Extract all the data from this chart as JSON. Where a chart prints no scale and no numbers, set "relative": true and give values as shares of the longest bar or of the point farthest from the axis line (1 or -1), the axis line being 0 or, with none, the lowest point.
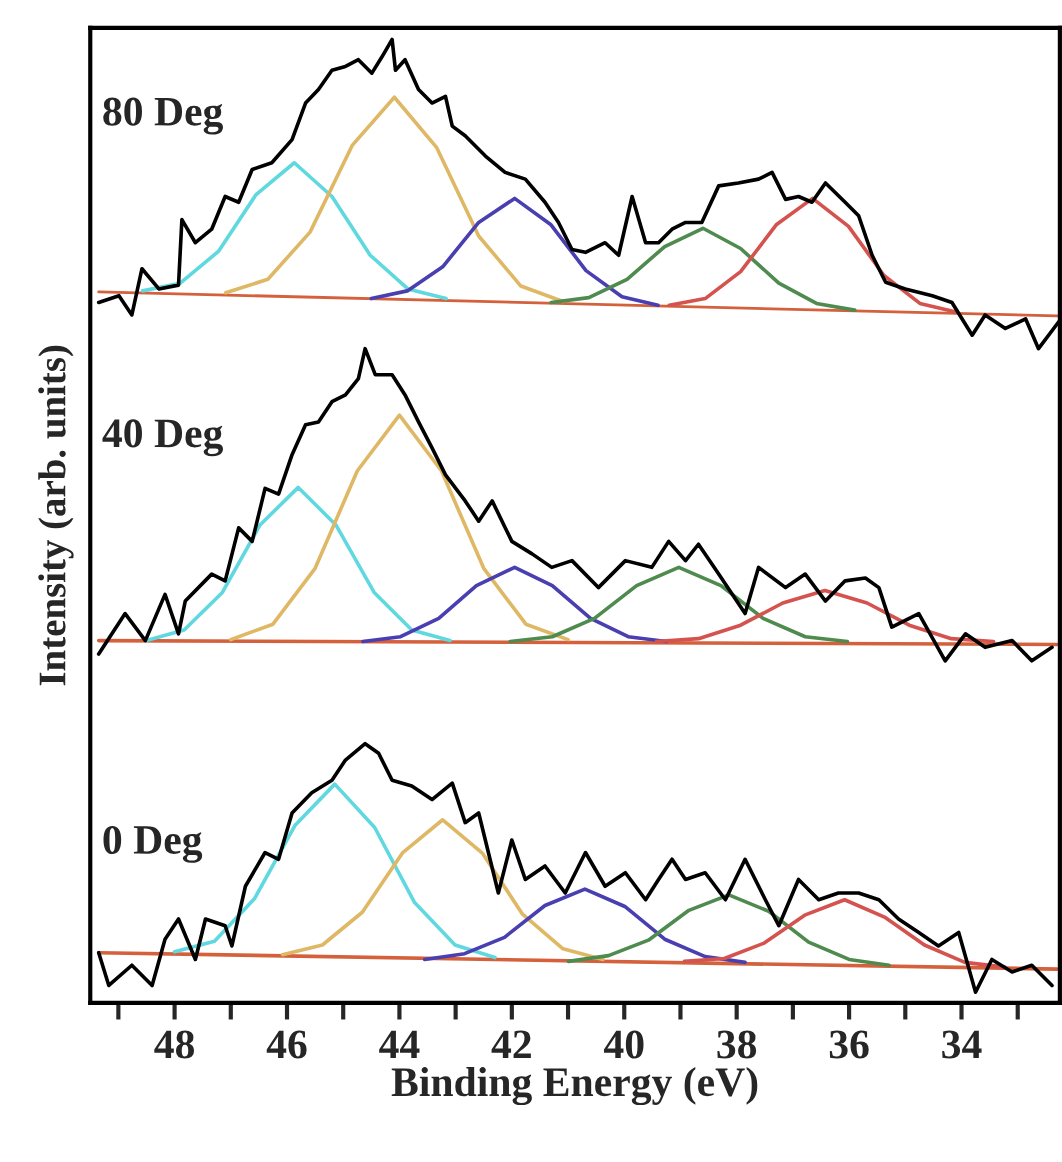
{
  "chart_data": {
    "type": "line",
    "relative": true,
    "xlabel": "Binding Energy (eV)",
    "ylabel": "Intensity (arb. units)",
    "xlim": [
      49.5,
      32.25
    ],
    "xticks": [
      {
        "value": 49,
        "label": null
      },
      48,
      {
        "value": 47,
        "label": null
      },
      46,
      {
        "value": 45,
        "label": null
      },
      44,
      {
        "value": 43,
        "label": null
      },
      42,
      {
        "value": 41,
        "label": null
      },
      40,
      {
        "value": 39,
        "label": null
      },
      38,
      {
        "value": 37,
        "label": null
      },
      36,
      {
        "value": 35,
        "label": null
      },
      34,
      {
        "value": 33,
        "label": null
      }
    ],
    "tick_labels": "x",
    "annotations": [
      "80 Deg",
      "40 Deg",
      "0 Deg"
    ],
    "series": [
      {
        "color": "#d4603c",
        "x": [
          49.35,
          32.3
        ],
        "values": [
          0.738,
          0.713
        ]
      },
      {
        "color": "#5fd8e0",
        "x": [
          43.17,
          43.85,
          44.52,
          45.2,
          45.87,
          46.55,
          47.22,
          47.9,
          48.57
        ],
        "values": [
          0.731,
          0.741,
          0.776,
          0.837,
          0.872,
          0.839,
          0.78,
          0.747,
          0.739
        ]
      },
      {
        "color": "#dfb865",
        "x": [
          41.09,
          41.84,
          42.59,
          43.34,
          44.09,
          44.84,
          45.59,
          46.34,
          47.09
        ],
        "values": [
          0.728,
          0.744,
          0.796,
          0.888,
          0.94,
          0.89,
          0.8,
          0.751,
          0.737
        ]
      },
      {
        "color": "#4a3fb0",
        "x": [
          39.4,
          40.04,
          40.68,
          41.31,
          41.95,
          42.59,
          43.23,
          43.86,
          44.5
        ],
        "values": [
          0.724,
          0.733,
          0.76,
          0.808,
          0.835,
          0.81,
          0.764,
          0.739,
          0.731
        ]
      },
      {
        "color": "#4f8a4f",
        "x": [
          35.9,
          36.58,
          37.25,
          37.93,
          38.6,
          39.28,
          39.95,
          40.63,
          41.3
        ],
        "values": [
          0.719,
          0.726,
          0.747,
          0.783,
          0.804,
          0.785,
          0.751,
          0.732,
          0.727
        ]
      },
      {
        "color": "#d4534f",
        "x": [
          34.1,
          34.74,
          35.38,
          36.01,
          36.65,
          37.29,
          37.93,
          38.56,
          39.2
        ],
        "values": [
          0.717,
          0.726,
          0.755,
          0.806,
          0.835,
          0.808,
          0.759,
          0.731,
          0.724
        ]
      },
      {
        "color": "#000000",
        "x": [
          49.35,
          48.99,
          48.76,
          48.58,
          48.28,
          47.93,
          47.87,
          47.63,
          47.34,
          47.1,
          46.86,
          46.62,
          46.27,
          45.91,
          45.67,
          45.44,
          45.2,
          44.96,
          44.73,
          44.49,
          44.31,
          44.13,
          44.07,
          43.9,
          43.66,
          43.42,
          43.18,
          43.06,
          42.83,
          42.47,
          42.12,
          41.76,
          41.41,
          41.17,
          40.93,
          40.69,
          40.34,
          40.1,
          39.86,
          39.62,
          39.39,
          39.15,
          38.91,
          38.62,
          38.32,
          37.97,
          37.61,
          37.37,
          37.13,
          36.9,
          36.66,
          36.42,
          36.07,
          35.83,
          35.59,
          35.35,
          35.0,
          34.52,
          34.17,
          33.81,
          33.58,
          33.22,
          32.86,
          32.63,
          32.27
        ],
        "values": [
          0.727,
          0.734,
          0.714,
          0.762,
          0.741,
          0.745,
          0.813,
          0.789,
          0.803,
          0.837,
          0.831,
          0.865,
          0.872,
          0.896,
          0.934,
          0.948,
          0.968,
          0.972,
          0.979,
          0.965,
          0.982,
          1.0,
          0.968,
          0.979,
          0.948,
          0.934,
          0.941,
          0.91,
          0.9,
          0.879,
          0.862,
          0.855,
          0.831,
          0.81,
          0.782,
          0.779,
          0.789,
          0.776,
          0.837,
          0.789,
          0.789,
          0.803,
          0.81,
          0.81,
          0.848,
          0.851,
          0.855,
          0.862,
          0.834,
          0.837,
          0.831,
          0.851,
          0.831,
          0.817,
          0.776,
          0.748,
          0.741,
          0.734,
          0.727,
          0.693,
          0.714,
          0.7,
          0.71,
          0.679,
          0.707
        ]
      },
      {
        "color": "#d4603c",
        "x": [
          49.35,
          32.3
        ],
        "values": [
          0.376,
          0.372
        ]
      },
      {
        "color": "#5fd8e0",
        "x": [
          43.1,
          43.78,
          44.45,
          45.13,
          45.8,
          46.48,
          47.15,
          47.83,
          48.5
        ],
        "values": [
          0.376,
          0.387,
          0.426,
          0.496,
          0.535,
          0.496,
          0.426,
          0.387,
          0.376
        ]
      },
      {
        "color": "#dfb865",
        "x": [
          41.0,
          41.75,
          42.5,
          43.25,
          44.0,
          44.75,
          45.5,
          46.25,
          47.0
        ],
        "values": [
          0.377,
          0.393,
          0.451,
          0.552,
          0.61,
          0.552,
          0.451,
          0.393,
          0.377
        ]
      },
      {
        "color": "#4a3fb0",
        "x": [
          39.25,
          39.93,
          40.6,
          41.28,
          41.95,
          42.63,
          43.3,
          43.98,
          44.65
        ],
        "values": [
          0.375,
          0.38,
          0.399,
          0.433,
          0.452,
          0.433,
          0.399,
          0.38,
          0.375
        ]
      },
      {
        "color": "#4f8a4f",
        "x": [
          36.03,
          36.78,
          37.53,
          38.28,
          39.03,
          39.78,
          40.53,
          41.28,
          42.03
        ],
        "values": [
          0.375,
          0.38,
          0.399,
          0.433,
          0.452,
          0.433,
          0.399,
          0.38,
          0.375
        ]
      },
      {
        "color": "#d4534f",
        "x": [
          33.43,
          34.18,
          34.93,
          35.68,
          36.43,
          37.18,
          37.93,
          38.68,
          39.43
        ],
        "values": [
          0.375,
          0.378,
          0.392,
          0.415,
          0.428,
          0.415,
          0.392,
          0.378,
          0.375
        ]
      },
      {
        "color": "#000000",
        "x": [
          49.35,
          48.88,
          48.52,
          48.17,
          47.93,
          47.81,
          47.34,
          47.1,
          46.86,
          46.62,
          46.39,
          46.15,
          45.91,
          45.67,
          45.44,
          45.2,
          44.96,
          44.73,
          44.61,
          44.43,
          44.13,
          43.9,
          43.66,
          43.42,
          43.18,
          42.83,
          42.59,
          42.35,
          42.0,
          41.64,
          41.29,
          40.93,
          40.46,
          39.98,
          39.51,
          39.21,
          38.91,
          38.68,
          38.32,
          37.85,
          37.61,
          37.13,
          36.78,
          36.42,
          36.07,
          35.71,
          35.47,
          35.24,
          34.76,
          34.29,
          33.93,
          33.58,
          33.1,
          32.75,
          32.39
        ],
        "values": [
          0.362,
          0.404,
          0.376,
          0.424,
          0.383,
          0.417,
          0.445,
          0.438,
          0.493,
          0.479,
          0.534,
          0.528,
          0.569,
          0.6,
          0.603,
          0.624,
          0.631,
          0.648,
          0.679,
          0.652,
          0.652,
          0.631,
          0.603,
          0.576,
          0.548,
          0.521,
          0.5,
          0.521,
          0.479,
          0.466,
          0.452,
          0.459,
          0.431,
          0.459,
          0.452,
          0.479,
          0.459,
          0.476,
          0.445,
          0.404,
          0.452,
          0.431,
          0.445,
          0.417,
          0.438,
          0.441,
          0.431,
          0.39,
          0.404,
          0.355,
          0.383,
          0.369,
          0.376,
          0.355,
          0.369
        ]
      },
      {
        "color": "#d4603c",
        "x": [
          49.35,
          32.3
        ],
        "values": [
          0.052,
          0.035
        ]
      },
      {
        "color": "#5fd8e0",
        "x": [
          42.3,
          43.01,
          43.73,
          44.44,
          45.15,
          45.86,
          46.58,
          47.29,
          48.0
        ],
        "values": [
          0.047,
          0.06,
          0.104,
          0.182,
          0.227,
          0.184,
          0.108,
          0.064,
          0.053
        ]
      },
      {
        "color": "#dfb865",
        "x": [
          40.38,
          41.09,
          41.81,
          42.52,
          43.23,
          43.94,
          44.66,
          45.37,
          46.08
        ],
        "values": [
          0.045,
          0.056,
          0.092,
          0.155,
          0.19,
          0.156,
          0.094,
          0.06,
          0.05
        ]
      },
      {
        "color": "#4a3fb0",
        "x": [
          37.85,
          38.56,
          39.28,
          39.99,
          40.7,
          41.41,
          42.13,
          42.84,
          43.55
        ],
        "values": [
          0.042,
          0.048,
          0.066,
          0.1,
          0.118,
          0.101,
          0.068,
          0.051,
          0.045
        ]
      },
      {
        "color": "#4f8a4f",
        "x": [
          35.29,
          36.0,
          36.72,
          37.43,
          38.14,
          38.85,
          39.57,
          40.28,
          40.99
        ],
        "values": [
          0.039,
          0.045,
          0.063,
          0.095,
          0.112,
          0.096,
          0.065,
          0.049,
          0.043
        ]
      },
      {
        "color": "#d4534f",
        "x": [
          33.23,
          33.94,
          34.66,
          35.37,
          36.08,
          36.79,
          37.51,
          38.22,
          38.93
        ],
        "values": [
          0.037,
          0.042,
          0.06,
          0.089,
          0.107,
          0.091,
          0.062,
          0.046,
          0.043
        ]
      },
      {
        "color": "#000000",
        "x": [
          49.35,
          49.17,
          48.76,
          48.4,
          48.17,
          47.93,
          47.63,
          47.45,
          47.1,
          46.98,
          46.74,
          46.39,
          46.15,
          45.91,
          45.56,
          45.2,
          44.96,
          44.61,
          44.37,
          44.13,
          43.78,
          43.42,
          43.06,
          42.83,
          42.59,
          42.24,
          42.0,
          41.76,
          41.41,
          41.05,
          40.69,
          40.34,
          39.98,
          39.62,
          39.39,
          39.15,
          38.91,
          38.56,
          38.2,
          37.85,
          37.49,
          37.25,
          36.9,
          36.54,
          36.19,
          35.83,
          35.47,
          35.12,
          34.76,
          34.41,
          34.05,
          33.75,
          33.46,
          33.1,
          32.75,
          32.39
        ],
        "values": [
          0.052,
          0.018,
          0.039,
          0.018,
          0.066,
          0.087,
          0.045,
          0.087,
          0.08,
          0.059,
          0.121,
          0.156,
          0.149,
          0.197,
          0.218,
          0.231,
          0.252,
          0.269,
          0.259,
          0.231,
          0.225,
          0.211,
          0.228,
          0.187,
          0.197,
          0.114,
          0.169,
          0.128,
          0.142,
          0.114,
          0.156,
          0.121,
          0.135,
          0.107,
          0.128,
          0.149,
          0.128,
          0.135,
          0.107,
          0.149,
          0.107,
          0.08,
          0.128,
          0.107,
          0.114,
          0.114,
          0.107,
          0.087,
          0.073,
          0.059,
          0.073,
          0.011,
          0.045,
          0.032,
          0.039,
          0.018
        ]
      }
    ]
  }
}
